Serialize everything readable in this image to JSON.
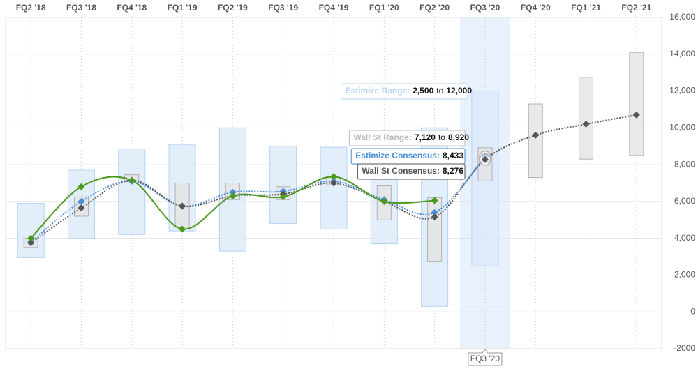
{
  "chart_data": {
    "type": "range-line",
    "categories": [
      "FQ2 '18",
      "FQ3 '18",
      "FQ4 '18",
      "FQ1 '19",
      "FQ2 '19",
      "FQ3 '19",
      "FQ4 '19",
      "FQ1 '20",
      "FQ2 '20",
      "FQ3 '20",
      "FQ4 '20",
      "FQ1 '21",
      "FQ2 '21"
    ],
    "ylim": [
      -2000,
      16000
    ],
    "yticks": [
      -2000,
      0,
      {
        "value": 2000,
        "label": "2,000"
      },
      {
        "value": 4000,
        "label": "4,000"
      },
      {
        "value": 6000,
        "label": "6,000"
      },
      {
        "value": 8000,
        "label": "8,000"
      },
      {
        "value": 10000,
        "label": "10,000"
      },
      {
        "value": 12000,
        "label": "12,000"
      },
      {
        "value": 14000,
        "label": "14,000"
      },
      {
        "value": 16000,
        "label": "16,000"
      }
    ],
    "highlight": "FQ3 '20",
    "tooltip_joiner": "to",
    "ranges": [
      {
        "name": "Estimize Range:",
        "color": "#dceafa",
        "stroke": "#b5d3f3",
        "low": [
          2950,
          4000,
          4200,
          4400,
          3300,
          4800,
          4500,
          3700,
          300,
          2500,
          null,
          null,
          null
        ],
        "high": [
          5900,
          7700,
          8850,
          9100,
          10000,
          9000,
          8950,
          8300,
          10000,
          12000,
          null,
          null,
          null
        ],
        "low_labels": [
          null,
          null,
          null,
          null,
          null,
          null,
          null,
          null,
          null,
          "2,500",
          null,
          null,
          null
        ],
        "high_labels": [
          null,
          null,
          null,
          null,
          null,
          null,
          null,
          null,
          null,
          "12,000",
          null,
          null,
          null
        ]
      },
      {
        "name": "Wall St Range:",
        "color": "#e3e3e3",
        "stroke": "#b0b0b0",
        "low": [
          3500,
          5200,
          7000,
          4600,
          6100,
          6100,
          6900,
          5000,
          2750,
          7120,
          7300,
          8300,
          8500
        ],
        "high": [
          4000,
          6250,
          7450,
          7000,
          7000,
          6800,
          7300,
          6850,
          6200,
          8920,
          11300,
          12750,
          14100
        ],
        "low_labels": [
          null,
          null,
          null,
          null,
          null,
          null,
          null,
          null,
          null,
          "7,120",
          null,
          null,
          null
        ],
        "high_labels": [
          null,
          null,
          null,
          null,
          null,
          null,
          null,
          null,
          null,
          "8,920",
          null,
          null,
          null
        ]
      }
    ],
    "series": [
      {
        "name": "Estimize Consensus:",
        "color": "#4a90d9",
        "values": [
          3800,
          6000,
          7100,
          5750,
          6500,
          6550,
          7100,
          6100,
          5400,
          8433,
          null,
          null,
          null
        ],
        "value_labels": [
          null,
          null,
          null,
          null,
          null,
          null,
          null,
          null,
          null,
          "8,433",
          null,
          null,
          null
        ]
      },
      {
        "name": "Wall St Consensus:",
        "color": "#555555",
        "values": [
          3750,
          5650,
          7150,
          5750,
          6300,
          6400,
          7000,
          6000,
          5150,
          8276,
          9600,
          10200,
          10700
        ],
        "value_labels": [
          null,
          null,
          null,
          null,
          null,
          null,
          null,
          null,
          null,
          "8,276",
          null,
          null,
          null
        ]
      },
      {
        "color": "#4c9a1c",
        "values": [
          4000,
          6800,
          7150,
          4500,
          6300,
          6250,
          7350,
          6000,
          6050,
          null,
          null,
          null,
          null
        ]
      }
    ]
  }
}
